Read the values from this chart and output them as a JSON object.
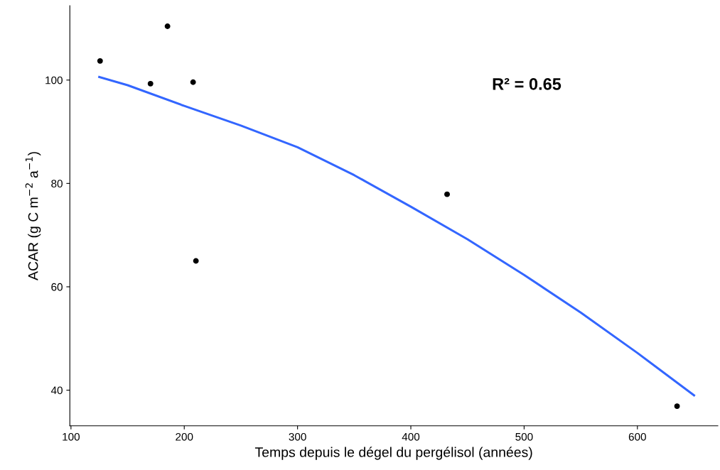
{
  "chart_data": {
    "type": "scatter",
    "xlabel": "Temps depuis le dégel du pergélisol (années)",
    "ylabel": "ACAR (g C m$^{−2}$ a$^{−1}$)",
    "annotations": [
      "R² = 0.65"
    ],
    "series": [
      {
        "color": "#000000",
        "marker": "circle",
        "x": [
          125.7,
          170.2,
          185.2,
          207.8,
          210.3,
          432,
          635
        ],
        "values": [
          103.7,
          99.3,
          110.4,
          99.6,
          65.0,
          77.9,
          36.9
        ]
      },
      {
        "type": "line",
        "color": "#3366ff",
        "marker": "none",
        "x": [
          125,
          150,
          200,
          250,
          300,
          350,
          400,
          450,
          500,
          550,
          600,
          650
        ],
        "values": [
          100.6,
          99.0,
          95.0,
          91.2,
          87.0,
          81.6,
          75.5,
          69.2,
          62.3,
          55.0,
          47.2,
          39.0
        ]
      }
    ],
    "xlim": [
      99,
      671
    ],
    "xticks": [
      100,
      200,
      300,
      400,
      500,
      600
    ],
    "ylim": [
      33.1,
      114.4
    ],
    "yticks": [
      40,
      60,
      80,
      100
    ],
    "grid": false,
    "legend": false
  }
}
